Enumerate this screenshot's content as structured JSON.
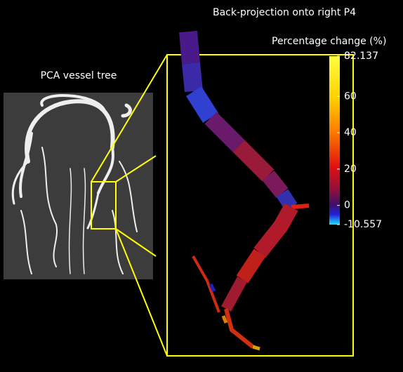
{
  "left_title": "PCA vessel tree",
  "right_title": "Back-projection onto right P4",
  "colorbar": {
    "label": "Percentage change (%)",
    "lim": [
      -10.557,
      82.137
    ],
    "ticks": [
      82.137,
      60,
      40,
      20,
      0,
      -10.557
    ]
  }
}
